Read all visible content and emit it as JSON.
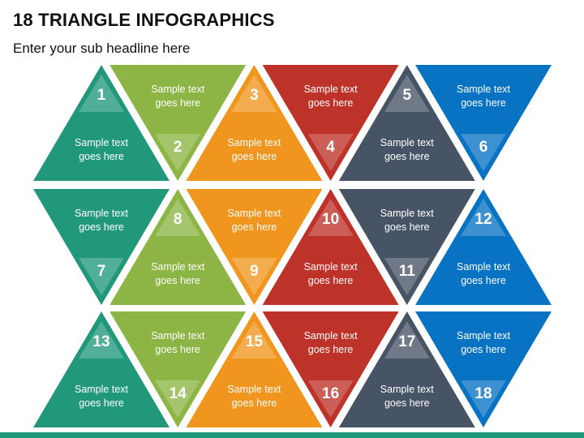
{
  "header": {
    "title": "18 TRIANGLE INFOGRAPHICS",
    "subtitle": "Enter your sub headline here"
  },
  "colors": {
    "teal": "#21987a",
    "green": "#8cb545",
    "orange": "#f0961e",
    "red": "#bd3229",
    "slate": "#475466",
    "blue": "#0872c3",
    "bar": "#21987a"
  },
  "column_colors": [
    "teal",
    "green",
    "orange",
    "red",
    "slate",
    "blue"
  ],
  "triangles": [
    {
      "number": "1",
      "text": [
        "Sample text",
        "goes here"
      ]
    },
    {
      "number": "2",
      "text": [
        "Sample text",
        "goes here"
      ]
    },
    {
      "number": "3",
      "text": [
        "Sample text",
        "goes here"
      ]
    },
    {
      "number": "4",
      "text": [
        "Sample text",
        "goes here"
      ]
    },
    {
      "number": "5",
      "text": [
        "Sample text",
        "goes here"
      ]
    },
    {
      "number": "6",
      "text": [
        "Sample text",
        "goes here"
      ]
    },
    {
      "number": "7",
      "text": [
        "Sample text",
        "goes here"
      ]
    },
    {
      "number": "8",
      "text": [
        "Sample text",
        "goes here"
      ]
    },
    {
      "number": "9",
      "text": [
        "Sample text",
        "goes here"
      ]
    },
    {
      "number": "10",
      "text": [
        "Sample text",
        "goes here"
      ]
    },
    {
      "number": "11",
      "text": [
        "Sample text",
        "goes here"
      ]
    },
    {
      "number": "12",
      "text": [
        "Sample text",
        "goes here"
      ]
    },
    {
      "number": "13",
      "text": [
        "Sample text",
        "goes here"
      ]
    },
    {
      "number": "14",
      "text": [
        "Sample text",
        "goes here"
      ]
    },
    {
      "number": "15",
      "text": [
        "Sample text",
        "goes here"
      ]
    },
    {
      "number": "16",
      "text": [
        "Sample text",
        "goes here"
      ]
    },
    {
      "number": "17",
      "text": [
        "Sample text",
        "goes here"
      ]
    },
    {
      "number": "18",
      "text": [
        "Sample text",
        "goes here"
      ]
    }
  ]
}
